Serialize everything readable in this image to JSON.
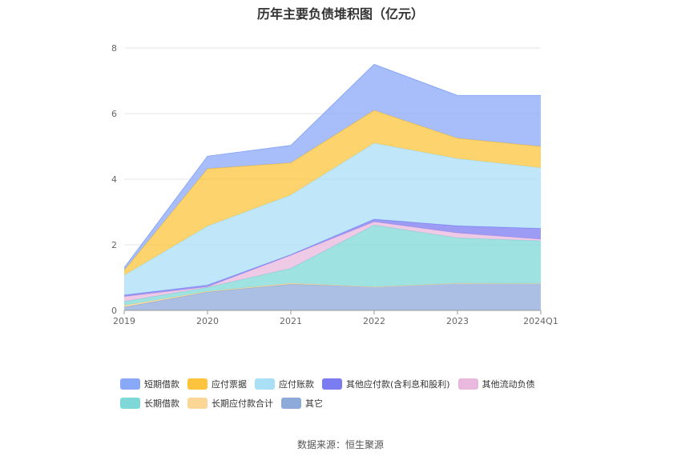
{
  "page": {
    "title": "历年主要负债堆积图（亿元）",
    "source": "数据来源：恒生聚源"
  },
  "chart_data": {
    "type": "area",
    "stacked": true,
    "title": "历年主要负债堆积图（亿元）",
    "xlabel": "",
    "ylabel": "",
    "ylim": [
      0,
      8
    ],
    "yticks": [
      0,
      2,
      4,
      6,
      8
    ],
    "grid": true,
    "legend_position": "bottom",
    "categories": [
      "2019",
      "2020",
      "2021",
      "2022",
      "2023",
      "2024Q1"
    ],
    "series": [
      {
        "name": "其它",
        "color": "#8eaad9",
        "values": [
          0.1,
          0.56,
          0.8,
          0.72,
          0.83,
          0.82
        ]
      },
      {
        "name": "长期应付款合计",
        "color": "#fcd696",
        "values": [
          0.05,
          0.02,
          0.03,
          0.0,
          0.0,
          0.0
        ]
      },
      {
        "name": "长期借款",
        "color": "#7fd8d8",
        "values": [
          0.12,
          0.12,
          0.45,
          1.88,
          1.38,
          1.3
        ]
      },
      {
        "name": "其他流动负债",
        "color": "#e8b8dd",
        "values": [
          0.15,
          0.02,
          0.4,
          0.1,
          0.15,
          0.05
        ]
      },
      {
        "name": "其他应付款(含利息和股利)",
        "color": "#7b7bf2",
        "values": [
          0.05,
          0.05,
          0.02,
          0.08,
          0.22,
          0.33
        ]
      },
      {
        "name": "应付账款",
        "color": "#a9dff7",
        "values": [
          0.6,
          1.8,
          1.82,
          2.32,
          2.05,
          1.85
        ]
      },
      {
        "name": "应付票据",
        "color": "#fbc43c",
        "values": [
          0.15,
          1.75,
          0.98,
          1.0,
          0.62,
          0.65
        ]
      },
      {
        "name": "短期借款",
        "color": "#8aa8f8",
        "values": [
          0.08,
          0.38,
          0.53,
          1.4,
          1.3,
          1.55
        ]
      }
    ]
  },
  "legend": {
    "rows": [
      [
        {
          "label": "短期借款",
          "color": "#8aa8f8"
        },
        {
          "label": "应付票据",
          "color": "#fbc43c"
        },
        {
          "label": "应付账款",
          "color": "#a9dff7"
        },
        {
          "label": "其他应付款(含利息和股利)",
          "color": "#7b7bf2"
        },
        {
          "label": "其他流动负债",
          "color": "#e8b8dd"
        }
      ],
      [
        {
          "label": "长期借款",
          "color": "#7fd8d8"
        },
        {
          "label": "长期应付款合计",
          "color": "#fcd696"
        },
        {
          "label": "其它",
          "color": "#8eaad9"
        }
      ]
    ]
  }
}
